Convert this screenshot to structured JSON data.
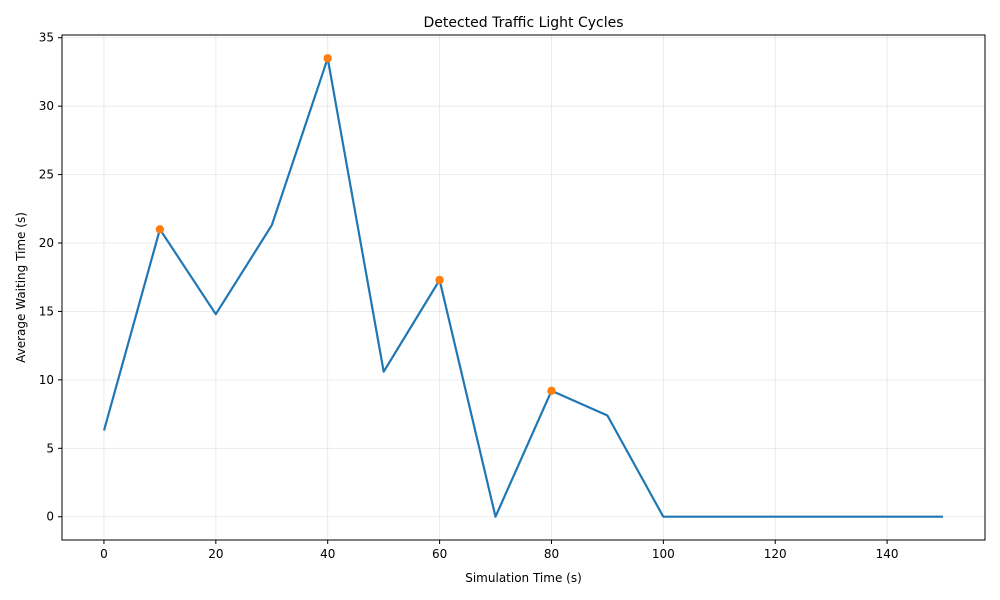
{
  "chart_data": {
    "type": "line",
    "title": "Detected Traffic Light Cycles",
    "xlabel": "Simulation Time (s)",
    "ylabel": "Average Waiting Time (s)",
    "xlim": [
      -7.5,
      157.5
    ],
    "ylim": [
      -1.7,
      35.2
    ],
    "xticks": [
      0,
      20,
      40,
      60,
      80,
      100,
      120,
      140
    ],
    "yticks": [
      0,
      5,
      10,
      15,
      20,
      25,
      30,
      35
    ],
    "grid": true,
    "series": [
      {
        "role": "line",
        "color": "#1f77b4",
        "x": [
          0,
          10,
          20,
          30,
          40,
          50,
          60,
          70,
          80,
          90,
          100,
          110,
          120,
          130,
          140,
          150
        ],
        "y": [
          6.3,
          21.0,
          14.8,
          21.3,
          33.5,
          10.6,
          17.3,
          0.0,
          9.2,
          7.4,
          0.0,
          0.0,
          0.0,
          0.0,
          0.0,
          0.0
        ]
      },
      {
        "role": "markers",
        "color": "#ff7f0e",
        "x": [
          10,
          40,
          60,
          80
        ],
        "y": [
          21.0,
          33.5,
          17.3,
          9.2
        ]
      }
    ]
  }
}
